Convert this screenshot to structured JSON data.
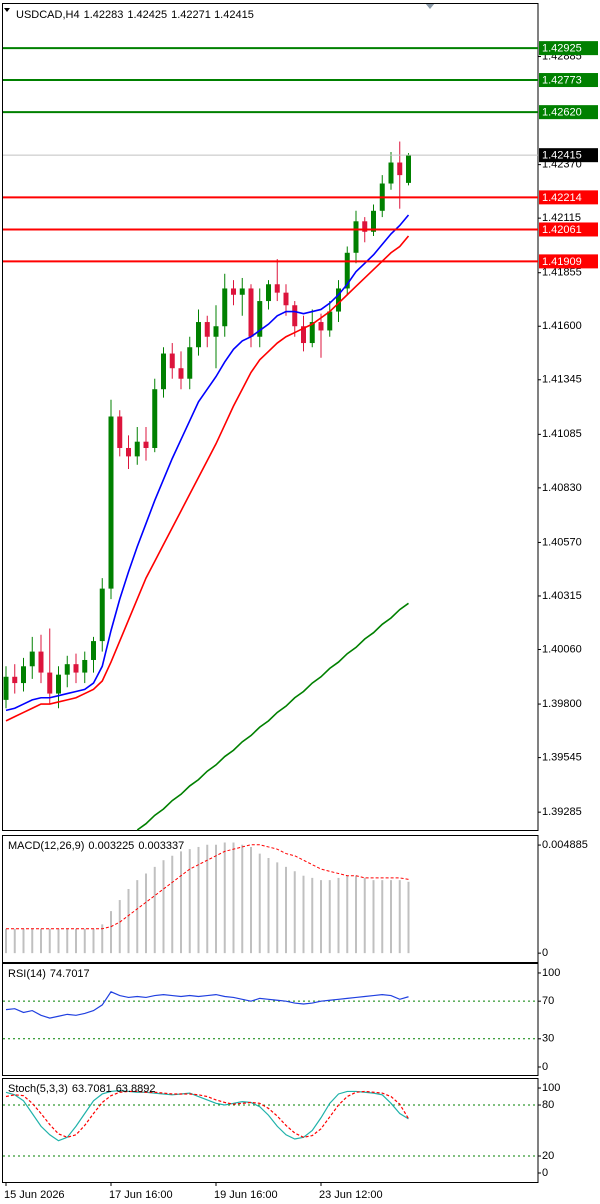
{
  "chart_data": [
    {
      "type": "candlestick",
      "symbol": "USDCAD,H4",
      "categories": [
        "15 Jun 2026",
        null,
        null,
        null,
        null,
        null,
        null,
        null,
        null,
        null,
        null,
        null,
        "17 Jun 16:00",
        null,
        null,
        null,
        null,
        null,
        null,
        null,
        null,
        null,
        null,
        null,
        "19 Jun 16:00",
        null,
        null,
        null,
        null,
        null,
        null,
        null,
        null,
        null,
        null,
        null,
        "23 Jun 12:00",
        null,
        null,
        null,
        null,
        null,
        null,
        null,
        null,
        null,
        null
      ],
      "open": [
        1.3982,
        1.3993,
        1.399,
        1.3998,
        1.4005,
        1.3995,
        1.3985,
        1.3994,
        1.3999,
        1.3995,
        1.4001,
        1.401,
        1.4035,
        1.4117,
        1.4102,
        1.4098,
        1.4105,
        1.4102,
        1.413,
        1.4147,
        1.414,
        1.4135,
        1.415,
        1.4162,
        1.4155,
        1.416,
        1.4178,
        1.4175,
        1.4178,
        1.4155,
        1.4172,
        1.418,
        1.4176,
        1.417,
        1.416,
        1.4152,
        1.4162,
        1.4158,
        1.4167,
        1.4178,
        1.4195,
        1.421,
        1.4205,
        1.4215,
        1.4228,
        1.4238,
        1.42283
      ],
      "high": [
        1.3998,
        1.3999,
        1.4002,
        1.4012,
        1.4013,
        1.4016,
        1.3998,
        1.4003,
        1.4004,
        1.4005,
        1.4012,
        1.404,
        1.4125,
        1.412,
        1.4108,
        1.4112,
        1.4112,
        1.4135,
        1.415,
        1.4152,
        1.4148,
        1.4155,
        1.4168,
        1.4165,
        1.417,
        1.4185,
        1.4182,
        1.4183,
        1.418,
        1.4178,
        1.4182,
        1.4192,
        1.418,
        1.4172,
        1.4165,
        1.4168,
        1.4166,
        1.4172,
        1.4182,
        1.4198,
        1.4215,
        1.4212,
        1.4218,
        1.4232,
        1.4243,
        1.4248,
        1.42425
      ],
      "low": [
        1.3978,
        1.3985,
        1.3986,
        1.3992,
        1.399,
        1.398,
        1.3978,
        1.3988,
        1.399,
        1.399,
        1.3995,
        1.4005,
        1.403,
        1.4098,
        1.4092,
        1.4094,
        1.4096,
        1.41,
        1.4126,
        1.4135,
        1.413,
        1.413,
        1.4146,
        1.415,
        1.414,
        1.4155,
        1.417,
        1.4165,
        1.415,
        1.415,
        1.4168,
        1.4172,
        1.4165,
        1.4155,
        1.4148,
        1.415,
        1.4145,
        1.4155,
        1.4162,
        1.4175,
        1.419,
        1.42,
        1.4203,
        1.4212,
        1.4225,
        1.4216,
        1.42271
      ],
      "close": [
        1.3993,
        1.399,
        1.3998,
        1.4005,
        1.3995,
        1.3985,
        1.3994,
        1.3999,
        1.3995,
        1.4001,
        1.401,
        1.4035,
        1.4117,
        1.4102,
        1.4098,
        1.4105,
        1.4102,
        1.413,
        1.4147,
        1.414,
        1.4135,
        1.415,
        1.4162,
        1.4155,
        1.416,
        1.4178,
        1.4175,
        1.4178,
        1.4155,
        1.4172,
        1.418,
        1.4176,
        1.417,
        1.416,
        1.4152,
        1.4162,
        1.4158,
        1.4167,
        1.4178,
        1.4195,
        1.421,
        1.4205,
        1.4215,
        1.4228,
        1.4238,
        1.4232,
        1.42415
      ],
      "up_color": "#008000",
      "down_color": "#dc143c",
      "lines": [
        {
          "color": "#0000ff",
          "values": [
            1.3977,
            1.3978,
            1.398,
            1.3982,
            1.3983,
            1.3983,
            1.3984,
            1.3985,
            1.3986,
            1.3987,
            1.399,
            1.3998,
            1.4015,
            1.403,
            1.4043,
            1.4055,
            1.4066,
            1.4077,
            1.4087,
            1.4097,
            1.4106,
            1.4115,
            1.4124,
            1.413,
            1.4136,
            1.4143,
            1.4149,
            1.4153,
            1.4155,
            1.4158,
            1.4161,
            1.4165,
            1.4167,
            1.4167,
            1.4166,
            1.4167,
            1.4168,
            1.4171,
            1.4175,
            1.418,
            1.4186,
            1.419,
            1.4194,
            1.4199,
            1.4204,
            1.4208,
            1.4213
          ]
        },
        {
          "color": "#ff0000",
          "values": [
            1.3972,
            1.3974,
            1.3976,
            1.3978,
            1.398,
            1.398,
            1.3981,
            1.3982,
            1.3983,
            1.3985,
            1.3987,
            1.3991,
            1.4,
            1.401,
            1.402,
            1.403,
            1.404,
            1.4048,
            1.4056,
            1.4064,
            1.4072,
            1.408,
            1.4088,
            1.4096,
            1.4104,
            1.4113,
            1.4122,
            1.413,
            1.4138,
            1.4144,
            1.4148,
            1.4152,
            1.4155,
            1.4157,
            1.4159,
            1.4161,
            1.4164,
            1.4167,
            1.4171,
            1.4175,
            1.4179,
            1.4183,
            1.4187,
            1.4191,
            1.4195,
            1.4198,
            1.4203
          ]
        },
        {
          "color": "#008000",
          "values": [
            null,
            null,
            null,
            null,
            null,
            null,
            null,
            null,
            null,
            null,
            null,
            null,
            null,
            null,
            null,
            1.392,
            1.3923,
            1.3927,
            1.393,
            1.3934,
            1.3937,
            1.3941,
            1.3944,
            1.3948,
            1.3951,
            1.3955,
            1.3958,
            1.3962,
            1.3965,
            1.3969,
            1.3972,
            1.3976,
            1.3979,
            1.3983,
            1.3986,
            1.399,
            1.3993,
            1.3997,
            1.4,
            1.4004,
            1.4007,
            1.4011,
            1.4014,
            1.4018,
            1.4021,
            1.4025,
            1.4028
          ]
        }
      ],
      "levels": {
        "values": [
          1.42925,
          1.42773,
          1.4262,
          1.42214,
          1.42061,
          1.41909
        ],
        "value_labels": [
          "1.42925",
          "1.42773",
          "1.42620",
          "1.42214",
          "1.42061",
          "1.41909"
        ],
        "colors": [
          "#008000",
          "#008000",
          "#008000",
          "#ff0000",
          "#ff0000",
          "#ff0000"
        ]
      },
      "ylim": [
        1.392,
        1.4314
      ],
      "yticks": [
        1.42885,
        {
          "value": 1.4237,
          "label": "1.42370"
        },
        1.42115,
        1.41855,
        {
          "value": 1.416,
          "label": "1.41600"
        },
        1.41345,
        1.41085,
        {
          "value": 1.4083,
          "label": "1.40830"
        },
        {
          "value": 1.4057,
          "label": "1.40570"
        },
        1.40315,
        {
          "value": 1.4006,
          "label": "1.40060"
        },
        {
          "value": 1.398,
          "label": "1.39800"
        },
        1.39545,
        1.39285
      ]
    },
    {
      "type": "macd",
      "title": "MACD(12,26,9)",
      "color": "#c0c0c0",
      "signal_color": "#ff0000",
      "values": [
        0.0011,
        0.0011,
        0.0011,
        0.0011,
        0.0011,
        0.0011,
        0.0011,
        0.0011,
        0.0011,
        0.0011,
        0.0011,
        0.0013,
        0.0019,
        0.0024,
        0.0029,
        0.0033,
        0.0036,
        0.0039,
        0.0042,
        0.0044,
        0.0046,
        0.0047,
        0.0048,
        0.0049,
        0.0049,
        0.005,
        0.005,
        0.0049,
        0.0048,
        0.0045,
        0.0043,
        0.0041,
        0.0039,
        0.0037,
        0.0035,
        0.0034,
        0.0033,
        0.0033,
        0.0034,
        0.0035,
        0.0035,
        0.0034,
        0.0033,
        0.0033,
        0.0033,
        0.0033,
        0.003225
      ],
      "signal": [
        0.0011,
        0.0011,
        0.0011,
        0.0011,
        0.0011,
        0.0011,
        0.0011,
        0.0011,
        0.0011,
        0.0011,
        0.0011,
        0.0011,
        0.0012,
        0.0014,
        0.0017,
        0.002,
        0.0023,
        0.0026,
        0.0029,
        0.0032,
        0.0035,
        0.0038,
        0.004,
        0.0042,
        0.0044,
        0.0046,
        0.0047,
        0.0048,
        0.0049,
        0.0049,
        0.0048,
        0.0047,
        0.0045,
        0.0044,
        0.0042,
        0.004,
        0.0038,
        0.0037,
        0.0036,
        0.0035,
        0.0035,
        0.0034,
        0.0034,
        0.0034,
        0.0034,
        0.0034,
        0.003337
      ],
      "ylim": [
        -0.0004,
        0.00534
      ],
      "yticks": [
        0.004885,
        0
      ]
    },
    {
      "type": "line",
      "title": "RSI(14)",
      "series": [
        {
          "color": "#2040e0",
          "style": "solid",
          "values": [
            61,
            62,
            58,
            60,
            55,
            52,
            54,
            56,
            55,
            57,
            60,
            66,
            80,
            76,
            74,
            75,
            74,
            76,
            77,
            76,
            75,
            76,
            75,
            76,
            77,
            75,
            74,
            72,
            70,
            73,
            72,
            71,
            70,
            68,
            67,
            68,
            70,
            71,
            72,
            73,
            74,
            75,
            76,
            77,
            76,
            72,
            74.7017
          ]
        }
      ],
      "ylim": [
        -8.5,
        110.6
      ],
      "yticks": [
        100,
        70,
        30,
        0
      ],
      "levels": [
        70,
        30
      ],
      "level_color": "#008000"
    },
    {
      "type": "line",
      "title": "Stoch(5,3,3)",
      "series": [
        {
          "color": "#20b2aa",
          "style": "solid",
          "values": [
            95,
            92,
            85,
            70,
            55,
            45,
            38,
            42,
            55,
            70,
            85,
            93,
            96,
            97,
            96,
            95,
            95,
            94,
            93,
            92,
            93,
            94,
            90,
            86,
            82,
            80,
            82,
            84,
            83,
            78,
            68,
            55,
            45,
            40,
            42,
            50,
            65,
            82,
            93,
            96,
            96,
            95,
            94,
            92,
            82,
            70,
            63.7081
          ]
        },
        {
          "color": "#ff0000",
          "style": "dashed",
          "values": [
            90,
            92,
            91,
            82,
            70,
            57,
            46,
            42,
            45,
            56,
            70,
            83,
            91,
            95,
            96,
            96,
            95,
            95,
            94,
            93,
            93,
            93,
            92,
            90,
            86,
            83,
            81,
            82,
            83,
            82,
            76,
            67,
            56,
            47,
            42,
            44,
            52,
            66,
            80,
            90,
            95,
            96,
            95,
            94,
            90,
            81,
            63.8892
          ]
        }
      ],
      "ylim": [
        -10.6,
        111.8
      ],
      "yticks": [
        100,
        80,
        20,
        0
      ],
      "levels": [
        80,
        20
      ],
      "level_color": "#008000"
    }
  ]
}
